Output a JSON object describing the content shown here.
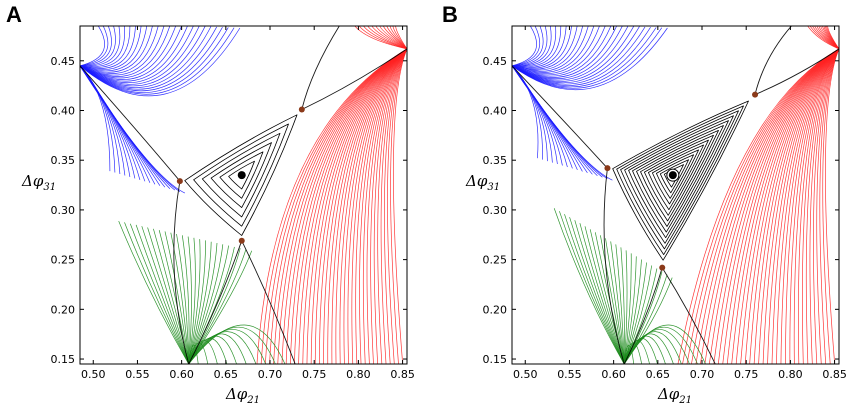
{
  "figure": {
    "panel_labels": [
      "A",
      "B"
    ]
  },
  "colors": {
    "blue": "#1a1aff",
    "red": "#ff2020",
    "green": "#1a8a1a",
    "black": "#000000",
    "saddle": "#8b3a1a"
  },
  "chart_data": [
    {
      "type": "scatter",
      "panel": "A",
      "title": "",
      "xlabel": "Δφ21",
      "ylabel": "Δφ31",
      "xlabel_main": "Δφ",
      "xlabel_sub": "21",
      "ylabel_main": "Δφ",
      "ylabel_sub": "31",
      "xlim": [
        0.485,
        0.855
      ],
      "ylim": [
        0.145,
        0.485
      ],
      "xticks": [
        0.5,
        0.55,
        0.6,
        0.65,
        0.7,
        0.75,
        0.8,
        0.85
      ],
      "xtick_labels": [
        "0.50",
        "0.55",
        "0.60",
        "0.65",
        "0.70",
        "0.75",
        "0.80",
        "0.85"
      ],
      "yticks": [
        0.15,
        0.2,
        0.25,
        0.3,
        0.35,
        0.4,
        0.45
      ],
      "ytick_labels": [
        "0.15",
        "0.20",
        "0.25",
        "0.30",
        "0.35",
        "0.40",
        "0.45"
      ],
      "stable_point": {
        "x": 0.668,
        "y": 0.335
      },
      "saddle_points": [
        {
          "x": 0.598,
          "y": 0.329
        },
        {
          "x": 0.736,
          "y": 0.401
        },
        {
          "x": 0.668,
          "y": 0.269
        }
      ],
      "attractors": {
        "blue": {
          "x": 0.485,
          "y": 0.445
        },
        "red": {
          "x": 0.855,
          "y": 0.462
        },
        "green": {
          "x": 0.608,
          "y": 0.145
        }
      },
      "limit_cycle_spirals": 6
    },
    {
      "type": "scatter",
      "panel": "B",
      "title": "",
      "xlabel": "Δφ21",
      "ylabel": "Δφ31",
      "xlabel_main": "Δφ",
      "xlabel_sub": "21",
      "ylabel_main": "Δφ",
      "ylabel_sub": "31",
      "xlim": [
        0.485,
        0.855
      ],
      "ylim": [
        0.145,
        0.485
      ],
      "xticks": [
        0.5,
        0.55,
        0.6,
        0.65,
        0.7,
        0.75,
        0.8,
        0.85
      ],
      "xtick_labels": [
        "0.50",
        "0.55",
        "0.60",
        "0.65",
        "0.70",
        "0.75",
        "0.80",
        "0.85"
      ],
      "yticks": [
        0.15,
        0.2,
        0.25,
        0.3,
        0.35,
        0.4,
        0.45
      ],
      "ytick_labels": [
        "0.15",
        "0.20",
        "0.25",
        "0.30",
        "0.35",
        "0.40",
        "0.45"
      ],
      "stable_point": {
        "x": 0.667,
        "y": 0.335
      },
      "saddle_points": [
        {
          "x": 0.593,
          "y": 0.342
        },
        {
          "x": 0.76,
          "y": 0.416
        },
        {
          "x": 0.655,
          "y": 0.242
        }
      ],
      "attractors": {
        "blue": {
          "x": 0.485,
          "y": 0.445
        },
        "red": {
          "x": 0.855,
          "y": 0.462
        },
        "green": {
          "x": 0.612,
          "y": 0.145
        }
      },
      "limit_cycle_spirals": 14
    }
  ]
}
